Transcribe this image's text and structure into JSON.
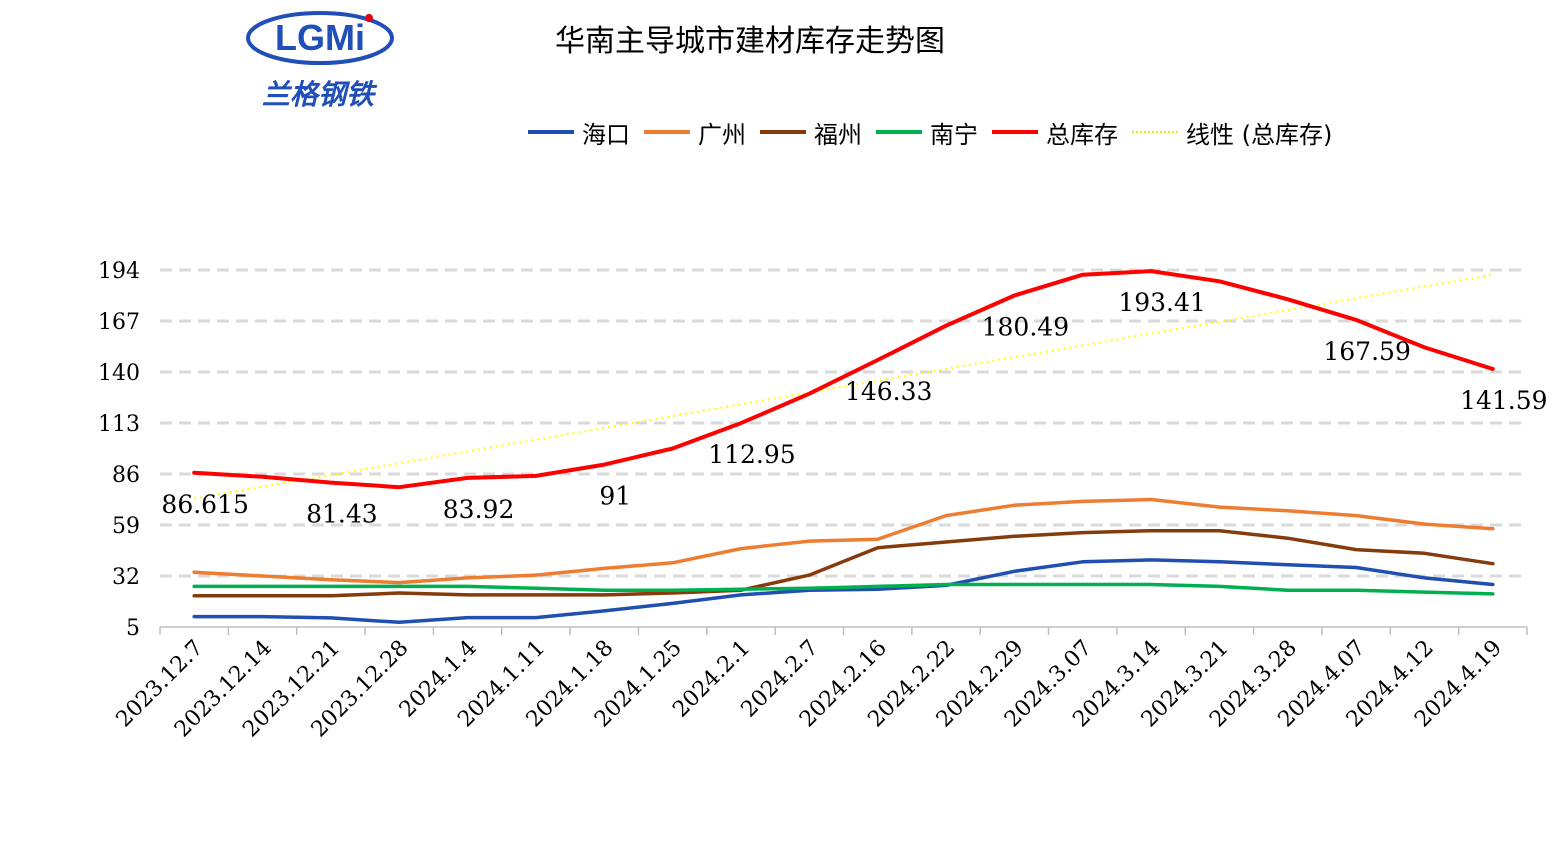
{
  "logo": {
    "letters": "LGMi",
    "cn": "兰格钢铁",
    "colors": {
      "blue": "#1f4fb7",
      "red": "#e60012"
    }
  },
  "chart_data": {
    "type": "line",
    "title": "华南主导城市建材库存走势图",
    "categories": [
      "2023.12.7",
      "2023.12.14",
      "2023.12.21",
      "2023.12.28",
      "2024.1.4",
      "2024.1.11",
      "2024.1.18",
      "2024.1.25",
      "2024.2.1",
      "2024.2.7",
      "2024.2.16",
      "2024.2.22",
      "2024.2.29",
      "2024.3.07",
      "2024.3.14",
      "2024.3.21",
      "2024.3.28",
      "2024.4.07",
      "2024.4.12",
      "2024.4.19"
    ],
    "series": [
      {
        "name": "海口",
        "color": "#1f4fb0",
        "values": [
          10.5,
          10.5,
          9.8,
          7.5,
          10.0,
          10.0,
          13.5,
          17.5,
          22.0,
          24.5,
          25.0,
          27.0,
          34.5,
          39.5,
          40.5,
          39.5,
          38.0,
          36.5,
          31.0,
          27.5
        ]
      },
      {
        "name": "广州",
        "color": "#ed7d31",
        "values": [
          34.0,
          32.0,
          30.0,
          28.5,
          31.0,
          32.5,
          36.0,
          39.0,
          46.5,
          50.5,
          51.5,
          64.0,
          69.5,
          71.5,
          72.5,
          68.5,
          66.5,
          64.0,
          59.5,
          57.0
        ]
      },
      {
        "name": "福州",
        "color": "#843c0c",
        "values": [
          21.5,
          21.5,
          21.5,
          23.0,
          22.0,
          22.0,
          22.0,
          23.0,
          24.5,
          32.5,
          47.0,
          50.0,
          53.0,
          55.0,
          56.0,
          56.0,
          52.0,
          46.0,
          44.0,
          38.5
        ]
      },
      {
        "name": "南宁",
        "color": "#00b050",
        "values": [
          26.5,
          26.5,
          26.5,
          26.5,
          26.5,
          25.5,
          24.5,
          24.5,
          25.0,
          25.5,
          26.5,
          27.5,
          27.5,
          27.5,
          27.5,
          26.5,
          24.5,
          24.5,
          23.5,
          22.5
        ]
      },
      {
        "name": "总库存",
        "color": "#ff0000",
        "values": [
          86.615,
          84.5,
          81.43,
          79.0,
          83.92,
          85.0,
          91,
          99.5,
          112.95,
          128.5,
          146.33,
          164.5,
          180.49,
          191.5,
          193.41,
          188.0,
          178.5,
          167.59,
          153.0,
          141.59
        ],
        "labels": [
          "86.615",
          "",
          "81.43",
          "",
          "83.92",
          "",
          "91",
          "",
          "112.95",
          "",
          "146.33",
          "",
          "180.49",
          "",
          "193.41",
          "",
          "",
          "167.59",
          "",
          "141.59"
        ]
      }
    ],
    "trendline": {
      "name": "线性 (总库存)",
      "color": "#ffff00",
      "start": 73.0,
      "end": 191.5
    },
    "ylim": [
      5,
      194
    ],
    "yticks": [
      5,
      32,
      59,
      86,
      113,
      140,
      167,
      194
    ],
    "grid": true,
    "legend_position": "top"
  }
}
